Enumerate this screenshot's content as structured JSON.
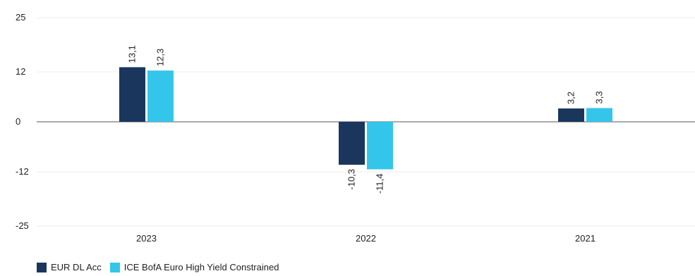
{
  "chart_data": {
    "type": "bar",
    "categories": [
      "2023",
      "2022",
      "2021"
    ],
    "series": [
      {
        "name": "EUR DL Acc",
        "values": [
          13.1,
          -10.3,
          3.2
        ],
        "labels": [
          "13,1",
          "-10,3",
          "3,2"
        ],
        "color": "#1b365d"
      },
      {
        "name": "ICE BofA Euro High Yield Constrained",
        "values": [
          12.3,
          -11.4,
          3.3
        ],
        "labels": [
          "12,3",
          "-11,4",
          "3,3"
        ],
        "color": "#34c6ea"
      }
    ],
    "yticks": [
      25,
      12,
      0,
      -12,
      -25
    ],
    "ytick_labels": [
      "25",
      "12",
      "0",
      "-12",
      "-25"
    ],
    "ylim": [
      -25,
      25
    ],
    "grid": true,
    "legend_position": "bottom-left",
    "title": "",
    "xlabel": "",
    "ylabel": ""
  }
}
